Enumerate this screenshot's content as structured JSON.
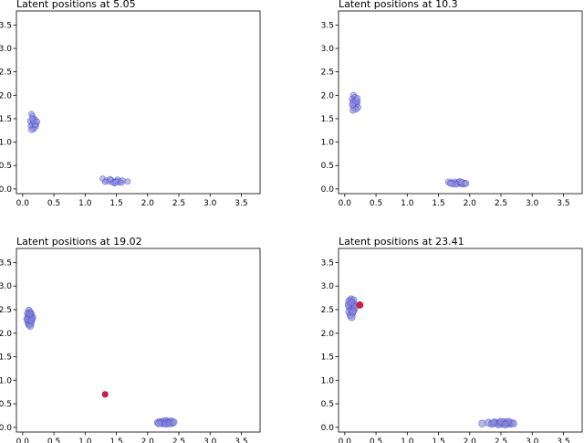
{
  "chart_data": [
    {
      "type": "scatter",
      "title": "Latent positions at 5.05",
      "xlim": [
        -0.1,
        3.8
      ],
      "ylim": [
        -0.1,
        3.8
      ],
      "xticks": [
        "0.0",
        "0.5",
        "1.0",
        "1.5",
        "2.0",
        "2.5",
        "3.0",
        "3.5"
      ],
      "yticks": [
        "0.0",
        "0.5",
        "1.0",
        "1.5",
        "2.0",
        "2.5",
        "3.0",
        "3.5"
      ],
      "grid": false,
      "series": [
        {
          "color": "#4a4ad0",
          "fill": "#9a9ae0",
          "size": 3,
          "opacity": 0.6,
          "points": [
            [
              0.14,
              1.6
            ],
            [
              0.16,
              1.55
            ],
            [
              0.18,
              1.5
            ],
            [
              0.2,
              1.48
            ],
            [
              0.12,
              1.45
            ],
            [
              0.17,
              1.42
            ],
            [
              0.22,
              1.4
            ],
            [
              0.15,
              1.38
            ],
            [
              0.19,
              1.36
            ],
            [
              0.13,
              1.34
            ],
            [
              0.21,
              1.33
            ],
            [
              0.16,
              1.3
            ],
            [
              0.18,
              1.28
            ],
            [
              0.14,
              1.26
            ],
            [
              0.2,
              1.37
            ],
            [
              0.17,
              1.45
            ],
            [
              0.23,
              1.44
            ],
            [
              0.15,
              1.5
            ],
            [
              1.28,
              0.22
            ],
            [
              1.34,
              0.18
            ],
            [
              1.38,
              0.16
            ],
            [
              1.42,
              0.19
            ],
            [
              1.46,
              0.15
            ],
            [
              1.5,
              0.17
            ],
            [
              1.54,
              0.14
            ],
            [
              1.47,
              0.12
            ],
            [
              1.52,
              0.2
            ],
            [
              1.56,
              0.16
            ],
            [
              1.6,
              0.18
            ],
            [
              1.44,
              0.14
            ],
            [
              1.4,
              0.21
            ],
            [
              1.49,
              0.15
            ],
            [
              1.68,
              0.16
            ],
            [
              1.32,
              0.15
            ],
            [
              1.58,
              0.13
            ]
          ]
        }
      ]
    },
    {
      "type": "scatter",
      "title": "Latent positions at 10.3",
      "xlim": [
        -0.1,
        3.8
      ],
      "ylim": [
        -0.1,
        3.8
      ],
      "xticks": [
        "0.0",
        "0.5",
        "1.0",
        "1.5",
        "2.0",
        "2.5",
        "3.0",
        "3.5"
      ],
      "yticks": [
        "0.0",
        "0.5",
        "1.0",
        "1.5",
        "2.0",
        "2.5",
        "3.0",
        "3.5"
      ],
      "grid": false,
      "series": [
        {
          "color": "#4a4ad0",
          "fill": "#9a9ae0",
          "size": 3.3,
          "opacity": 0.6,
          "points": [
            [
              0.14,
              2.0
            ],
            [
              0.16,
              1.95
            ],
            [
              0.12,
              1.92
            ],
            [
              0.18,
              1.9
            ],
            [
              0.15,
              1.88
            ],
            [
              0.2,
              1.86
            ],
            [
              0.13,
              1.84
            ],
            [
              0.17,
              1.82
            ],
            [
              0.19,
              1.8
            ],
            [
              0.14,
              1.78
            ],
            [
              0.16,
              1.76
            ],
            [
              0.21,
              1.74
            ],
            [
              0.15,
              1.72
            ],
            [
              0.18,
              1.7
            ],
            [
              0.13,
              1.68
            ],
            [
              0.17,
              1.87
            ],
            [
              0.12,
              1.8
            ],
            [
              0.2,
              1.93
            ],
            [
              1.66,
              0.15
            ],
            [
              1.7,
              0.13
            ],
            [
              1.74,
              0.12
            ],
            [
              1.76,
              0.15
            ],
            [
              1.8,
              0.11
            ],
            [
              1.82,
              0.14
            ],
            [
              1.85,
              0.12
            ],
            [
              1.88,
              0.1
            ],
            [
              1.9,
              0.13
            ],
            [
              1.92,
              0.11
            ],
            [
              1.78,
              0.1
            ],
            [
              1.84,
              0.16
            ],
            [
              1.72,
              0.11
            ],
            [
              1.87,
              0.14
            ],
            [
              1.94,
              0.12
            ],
            [
              1.69,
              0.12
            ]
          ]
        }
      ]
    },
    {
      "type": "scatter",
      "title": "Latent positions at 19.02",
      "xlim": [
        -0.1,
        3.8
      ],
      "ylim": [
        -0.1,
        3.8
      ],
      "xticks": [
        "0.0",
        "0.5",
        "1.0",
        "1.5",
        "2.0",
        "2.5",
        "3.0",
        "3.5"
      ],
      "yticks": [
        "0.0",
        "0.5",
        "1.0",
        "1.5",
        "2.0",
        "2.5",
        "3.0",
        "3.5"
      ],
      "grid": false,
      "series": [
        {
          "color": "#4a4ad0",
          "fill": "#8a8ad8",
          "size": 3.6,
          "opacity": 0.6,
          "points": [
            [
              0.1,
              2.48
            ],
            [
              0.12,
              2.44
            ],
            [
              0.08,
              2.42
            ],
            [
              0.14,
              2.4
            ],
            [
              0.11,
              2.38
            ],
            [
              0.09,
              2.36
            ],
            [
              0.13,
              2.34
            ],
            [
              0.1,
              2.32
            ],
            [
              0.15,
              2.3
            ],
            [
              0.08,
              2.28
            ],
            [
              0.12,
              2.26
            ],
            [
              0.11,
              2.24
            ],
            [
              0.09,
              2.22
            ],
            [
              0.13,
              2.2
            ],
            [
              0.1,
              2.18
            ],
            [
              0.12,
              2.15
            ],
            [
              0.16,
              2.33
            ],
            [
              0.07,
              2.3
            ],
            [
              0.14,
              2.27
            ],
            [
              0.11,
              2.41
            ],
            [
              2.16,
              0.1
            ],
            [
              2.2,
              0.12
            ],
            [
              2.24,
              0.08
            ],
            [
              2.26,
              0.13
            ],
            [
              2.28,
              0.1
            ],
            [
              2.3,
              0.14
            ],
            [
              2.32,
              0.09
            ],
            [
              2.34,
              0.12
            ],
            [
              2.36,
              0.1
            ],
            [
              2.38,
              0.13
            ],
            [
              2.4,
              0.09
            ],
            [
              2.22,
              0.1
            ],
            [
              2.29,
              0.07
            ],
            [
              2.35,
              0.08
            ],
            [
              2.42,
              0.11
            ],
            [
              2.18,
              0.08
            ]
          ]
        },
        {
          "color": "#cc0033",
          "fill": "#d11a45",
          "size": 3.2,
          "opacity": 1.0,
          "points": [
            [
              1.32,
              0.7
            ]
          ]
        }
      ]
    },
    {
      "type": "scatter",
      "title": "Latent positions at 23.41",
      "xlim": [
        -0.1,
        3.8
      ],
      "ylim": [
        -0.1,
        3.8
      ],
      "xticks": [
        "0.0",
        "0.5",
        "1.0",
        "1.5",
        "2.0",
        "2.5",
        "3.0",
        "3.5"
      ],
      "yticks": [
        "0.0",
        "0.5",
        "1.0",
        "1.5",
        "2.0",
        "2.5",
        "3.0",
        "3.5"
      ],
      "grid": false,
      "series": [
        {
          "color": "#4a4ad0",
          "fill": "#8a8ad8",
          "size": 3.8,
          "opacity": 0.6,
          "points": [
            [
              0.1,
              2.72
            ],
            [
              0.14,
              2.7
            ],
            [
              0.07,
              2.68
            ],
            [
              0.12,
              2.65
            ],
            [
              0.09,
              2.62
            ],
            [
              0.15,
              2.6
            ],
            [
              0.11,
              2.58
            ],
            [
              0.08,
              2.55
            ],
            [
              0.13,
              2.52
            ],
            [
              0.1,
              2.5
            ],
            [
              0.14,
              2.48
            ],
            [
              0.07,
              2.45
            ],
            [
              0.12,
              2.42
            ],
            [
              0.09,
              2.38
            ],
            [
              0.11,
              2.34
            ],
            [
              0.06,
              2.6
            ],
            [
              0.16,
              2.55
            ],
            [
              0.1,
              2.66
            ],
            [
              0.13,
              2.46
            ],
            [
              2.2,
              0.08
            ],
            [
              2.3,
              0.1
            ],
            [
              2.35,
              0.07
            ],
            [
              2.4,
              0.11
            ],
            [
              2.44,
              0.08
            ],
            [
              2.48,
              0.1
            ],
            [
              2.52,
              0.07
            ],
            [
              2.55,
              0.11
            ],
            [
              2.58,
              0.08
            ],
            [
              2.6,
              0.1
            ],
            [
              2.64,
              0.07
            ],
            [
              2.67,
              0.09
            ],
            [
              2.7,
              0.08
            ],
            [
              2.46,
              0.06
            ],
            [
              2.38,
              0.09
            ],
            [
              2.62,
              0.12
            ],
            [
              2.5,
              0.12
            ],
            [
              2.57,
              0.06
            ]
          ]
        },
        {
          "color": "#cc0033",
          "fill": "#d11a45",
          "size": 3.6,
          "opacity": 1.0,
          "points": [
            [
              0.24,
              2.6
            ]
          ]
        }
      ]
    }
  ]
}
